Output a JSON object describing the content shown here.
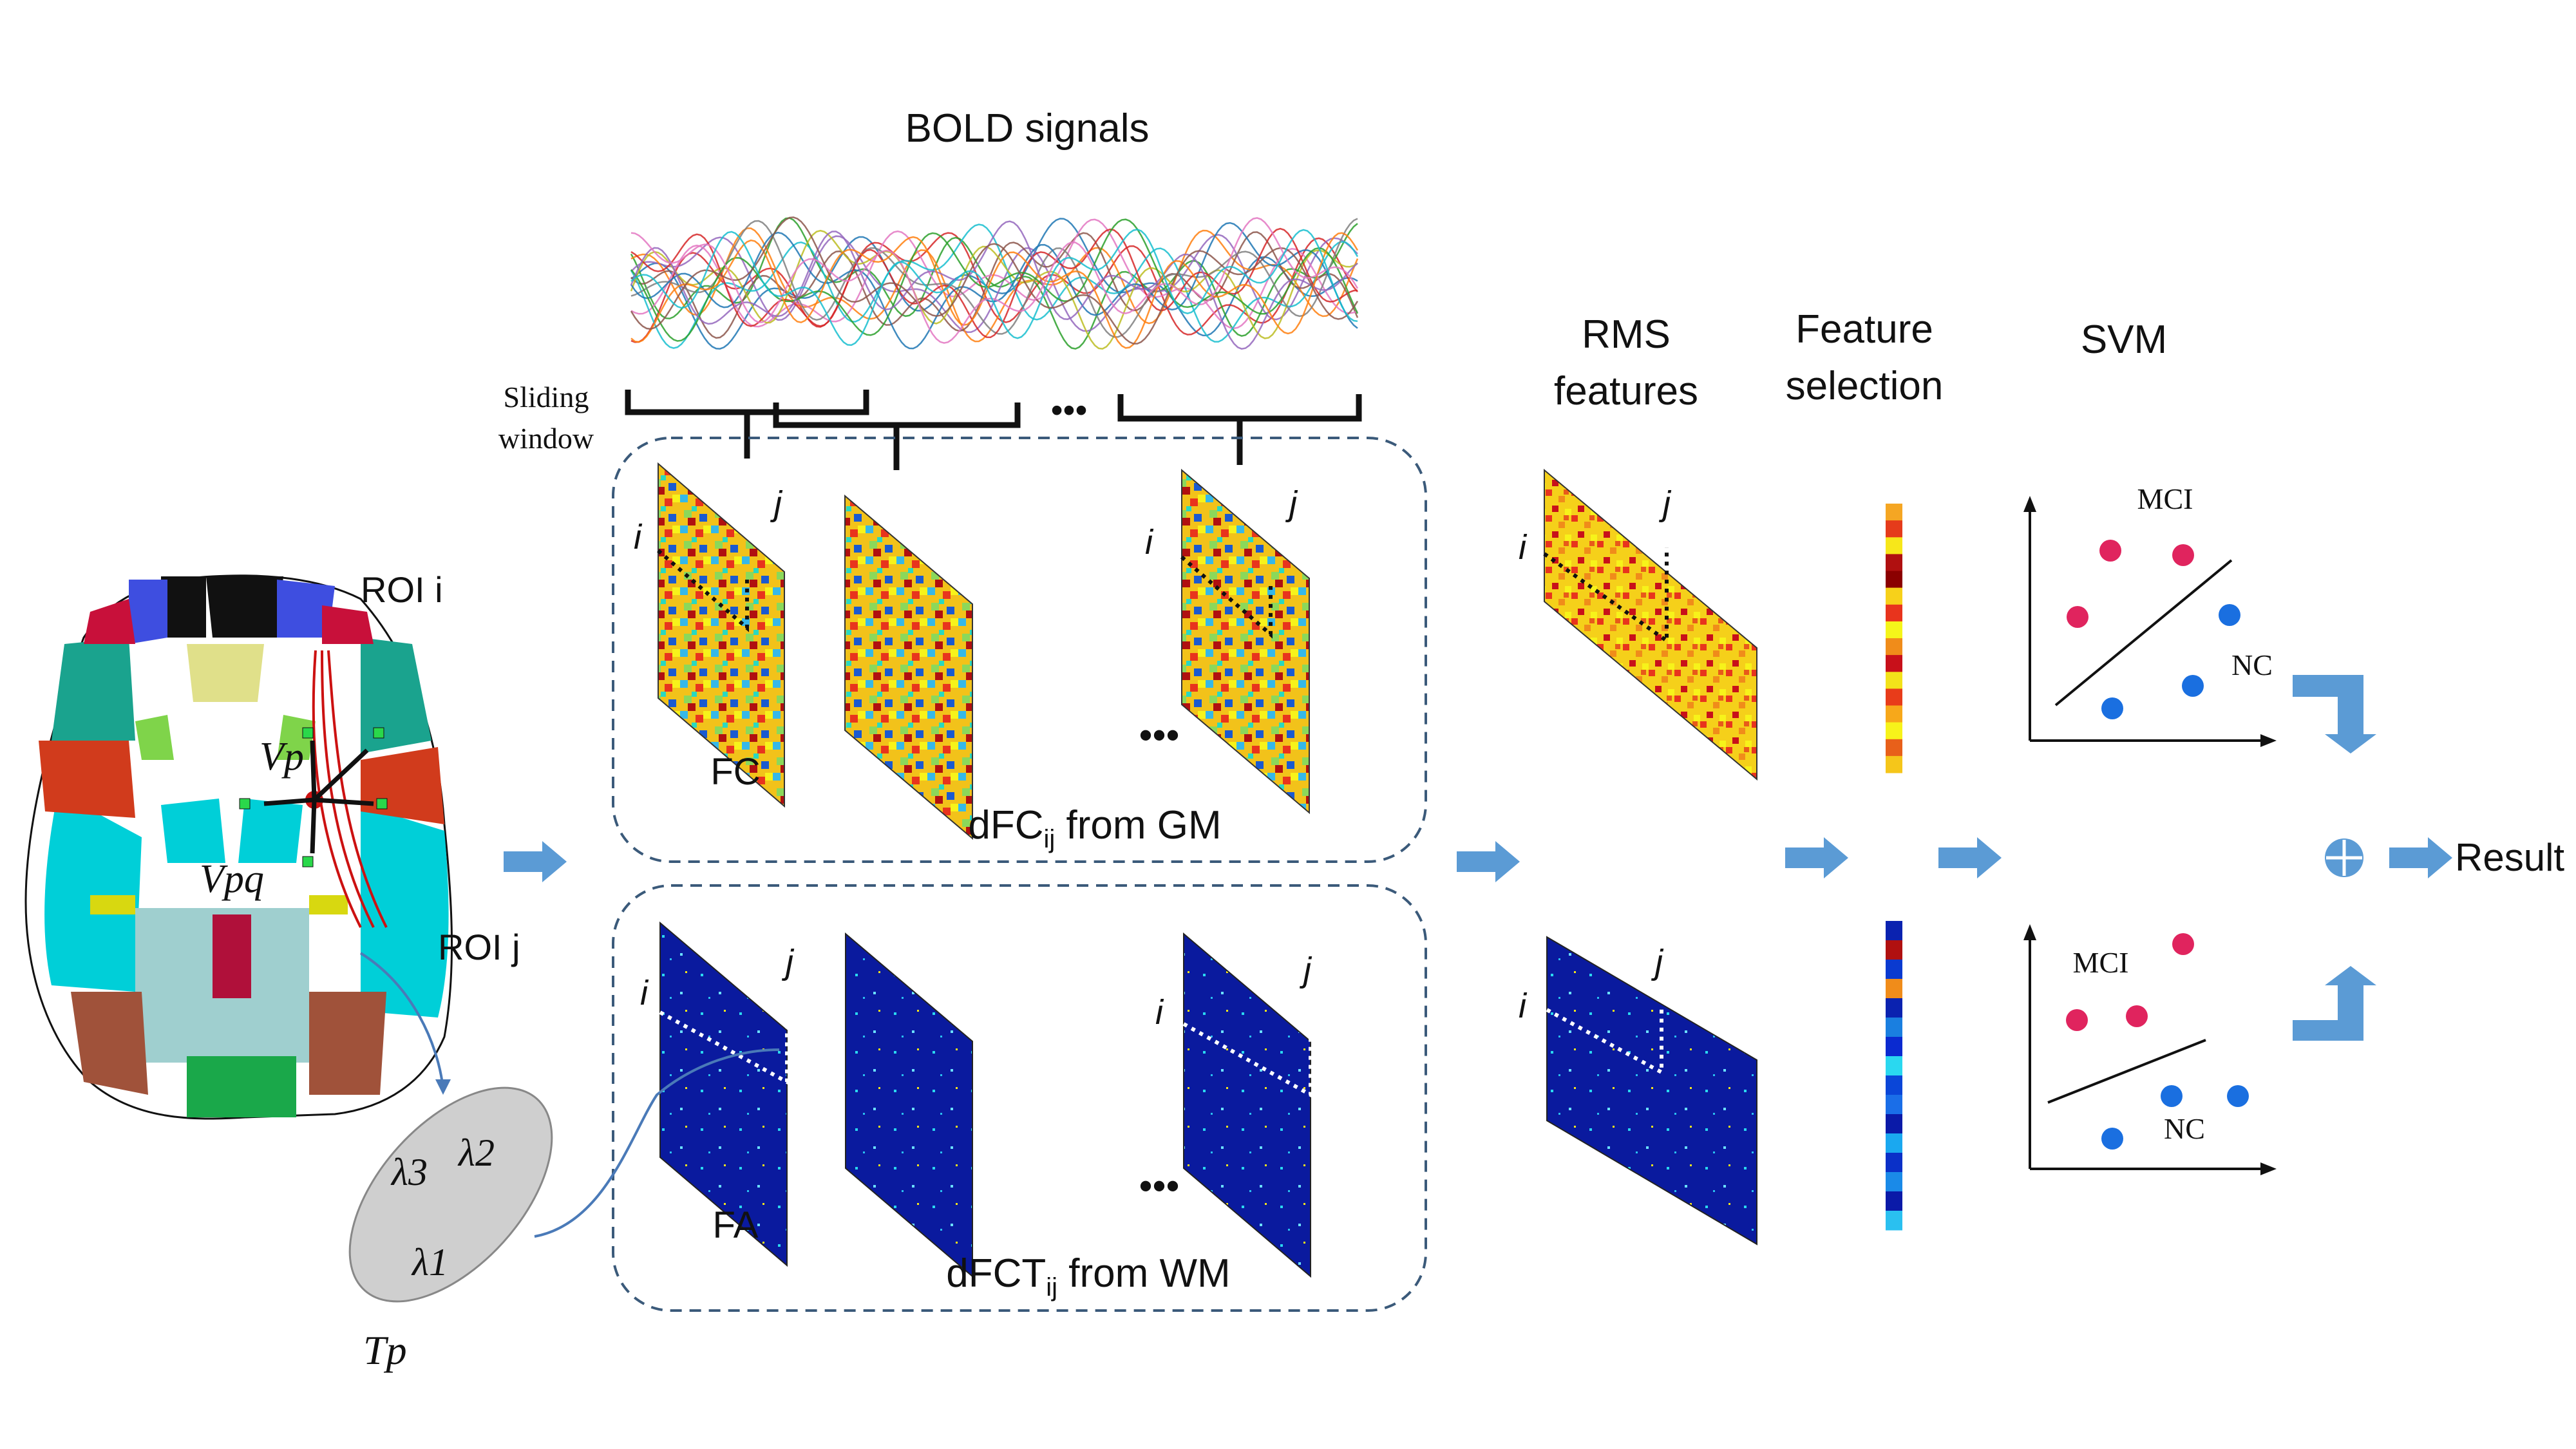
{
  "labels": {
    "bold": "BOLD signals",
    "sliding": "Sliding",
    "window": "window",
    "rms1": "RMS",
    "rms2": "features",
    "fs1": "Feature",
    "fs2": "selection",
    "svm": "SVM",
    "fc": "FC",
    "fa": "FA",
    "dfc_pre": "dFC",
    "dfc_sub": "ij",
    "dfc_post": " from GM",
    "dfct_pre": "dFCT",
    "dfct_sub": "ij",
    "dfct_post": " from WM",
    "roi_i": "ROI i",
    "roi_j": "ROI j",
    "vp": "Vp",
    "vpq": "Vpq",
    "tp": "Tp",
    "lambda1": "λ1",
    "lambda2": "λ2",
    "lambda3": "λ3",
    "i": "i",
    "j": "j",
    "dots": "•••",
    "mci": "MCI",
    "nc": "NC",
    "result": "Result"
  },
  "colors": {
    "arrow": "#5b9bd5",
    "mci_dot": "#e0245e",
    "nc_dot": "#1a6fe0",
    "panel": "#3b5a7a",
    "fa_bg": "#0a1a9e"
  },
  "bold_series_count": 18,
  "feature_bar_top": [
    "#f5a623",
    "#e53b1b",
    "#f7e71a",
    "#b01010",
    "#8b0000",
    "#f7d11a",
    "#e8341d",
    "#f5f51a",
    "#f08c1a",
    "#c8101a",
    "#f3e21a",
    "#e83c1a",
    "#f7a81a",
    "#f7f31a",
    "#e8601a",
    "#f5c61a"
  ],
  "feature_bar_bottom": [
    "#0a22b0",
    "#b01010",
    "#0a3ad0",
    "#f08c1a",
    "#0a22b0",
    "#1a7fe0",
    "#0a2ad0",
    "#2ad8f0",
    "#0a46d8",
    "#1a6ee8",
    "#0a1aa8",
    "#1aa8f0",
    "#0a30c8",
    "#1a8ae8",
    "#0a1aa8",
    "#2ac0f0"
  ]
}
